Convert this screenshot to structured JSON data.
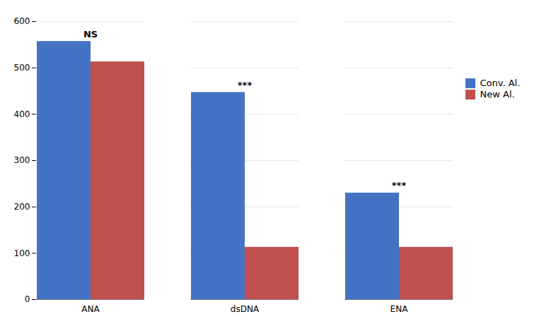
{
  "chart_data": {
    "type": "bar",
    "categories": [
      "ANA",
      "dsDNA",
      "ENA"
    ],
    "series": [
      {
        "name": "Conv. Al.",
        "color": "#4472C4",
        "values": [
          557,
          447,
          230
        ]
      },
      {
        "name": "New Al.",
        "color": "#C0504D",
        "values": [
          513,
          113,
          113
        ]
      }
    ],
    "annotations": [
      "NS",
      "***",
      "***"
    ],
    "ylim": [
      0,
      600
    ],
    "yticks": [
      0,
      100,
      200,
      300,
      400,
      500,
      600
    ],
    "grid": true,
    "legend": "right"
  }
}
